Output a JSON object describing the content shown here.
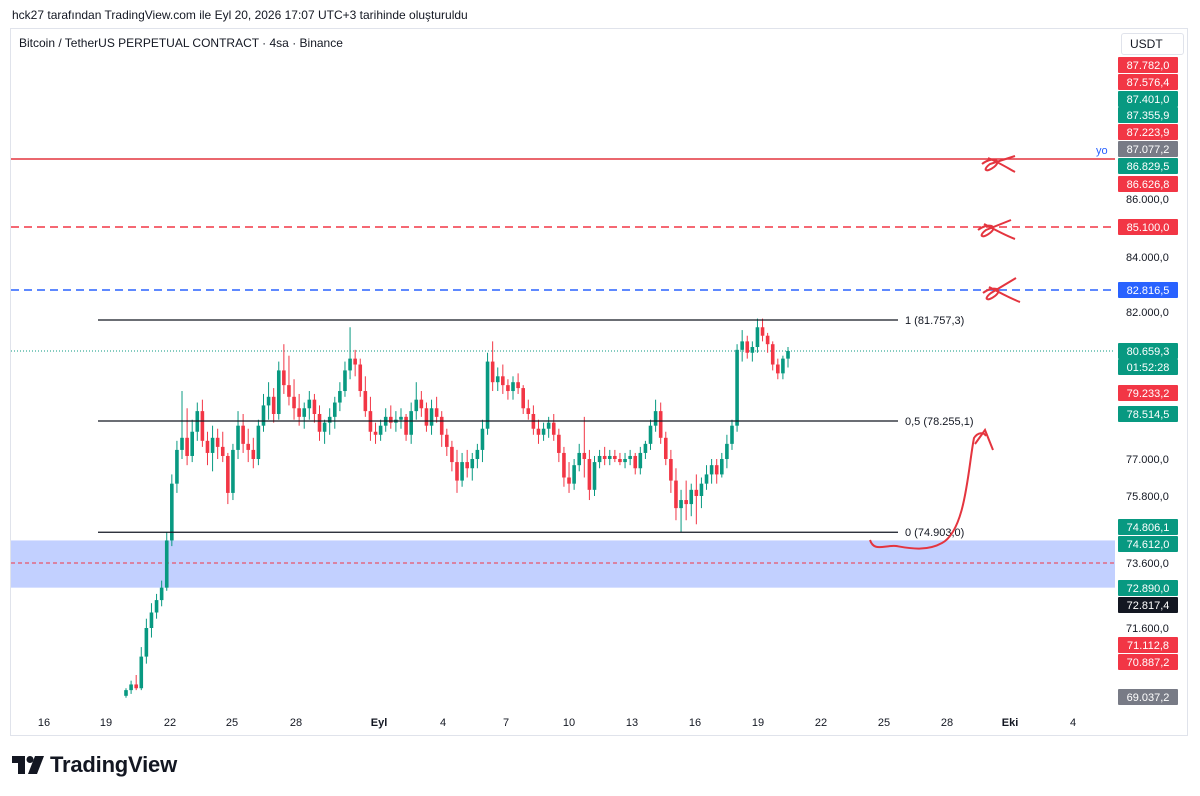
{
  "header": {
    "caption": "hck27 tarafından TradingView.com ile Eyl 20, 2026 17:07 UTC+3 tarihinde oluşturuldu"
  },
  "symbol": {
    "title": "Bitcoin / TetherUS PERPETUAL CONTRACT · 4sa · Binance"
  },
  "currency": "USDT",
  "footer": {
    "brand": "TradingView"
  },
  "colors": {
    "up": "#089981",
    "down": "#f23645",
    "black": "#131722",
    "gray": "#787b86",
    "blue": "#2962ff",
    "red_line": "#e4353f",
    "zone": "#bbcbff"
  },
  "chart_data": {
    "type": "candlestick",
    "y_axis": {
      "tick_labels": [
        "86.000,0",
        "84.000,0",
        "82.000,0",
        "77.000,0",
        "75.800,0",
        "73.600,0",
        "71.600,0"
      ]
    },
    "x_axis": {
      "tick_labels": [
        "16",
        "19",
        "22",
        "25",
        "28",
        "Eyl",
        "4",
        "7",
        "10",
        "13",
        "16",
        "19",
        "22",
        "25",
        "28",
        "Eki",
        "4"
      ]
    },
    "price_labels": [
      {
        "text": "87.782,0",
        "color": "#f23645"
      },
      {
        "text": "87.576,4",
        "color": "#f23645"
      },
      {
        "text": "87.401,0",
        "color": "#089981"
      },
      {
        "text": "87.355,9",
        "color": "#089981"
      },
      {
        "text": "87.223,9",
        "color": "#f23645"
      },
      {
        "text": "87.077,2",
        "color": "#787b86"
      },
      {
        "text": "86.829,5",
        "color": "#089981"
      },
      {
        "text": "86.626,8",
        "color": "#f23645"
      },
      {
        "text": "85.100,0",
        "color": "#f23645"
      },
      {
        "text": "82.816,5",
        "color": "#2962ff"
      },
      {
        "text": "80.659,3",
        "color": "#089981"
      },
      {
        "text": "01:52:28",
        "color": "#089981"
      },
      {
        "text": "79.233,2",
        "color": "#f23645"
      },
      {
        "text": "78.514,5",
        "color": "#089981"
      },
      {
        "text": "74.806,1",
        "color": "#089981"
      },
      {
        "text": "74.612,0",
        "color": "#089981"
      },
      {
        "text": "72.890,0",
        "color": "#089981"
      },
      {
        "text": "72.817,4",
        "color": "#131722"
      },
      {
        "text": "71.112,8",
        "color": "#f23645"
      },
      {
        "text": "70.887,2",
        "color": "#f23645"
      },
      {
        "text": "69.037,2",
        "color": "#787b86"
      }
    ],
    "fib_levels": [
      {
        "ratio": 1,
        "price": 81757.3,
        "label": "1 (81.757,3)"
      },
      {
        "ratio": 0.5,
        "price": 78255.1,
        "label": "0,5 (78.255,1)"
      },
      {
        "ratio": 0,
        "price": 74903.0,
        "label": "0 (74.903,0)"
      }
    ],
    "horizontal_lines": [
      {
        "price": 86800,
        "style": "solid",
        "color": "#e4353f",
        "label": "yo"
      },
      {
        "price": 85100,
        "style": "dashed",
        "color": "#f23645"
      },
      {
        "price": 82816.5,
        "style": "dashed",
        "color": "#2962ff"
      }
    ],
    "current_price": 80659.3,
    "demand_zone": {
      "from": 72900,
      "to": 74700,
      "midline": 73600
    },
    "candles": [
      {
        "o": 69100,
        "h": 69500,
        "l": 69000,
        "c": 69400
      },
      {
        "o": 69400,
        "h": 69900,
        "l": 69200,
        "c": 69700
      },
      {
        "o": 69700,
        "h": 70200,
        "l": 69400,
        "c": 69500
      },
      {
        "o": 69500,
        "h": 71200,
        "l": 69400,
        "c": 71000
      },
      {
        "o": 71000,
        "h": 71900,
        "l": 70800,
        "c": 71600
      },
      {
        "o": 71600,
        "h": 72400,
        "l": 71400,
        "c": 72100
      },
      {
        "o": 72100,
        "h": 72700,
        "l": 71900,
        "c": 72500
      },
      {
        "o": 72500,
        "h": 73100,
        "l": 72300,
        "c": 72900
      },
      {
        "o": 72900,
        "h": 74900,
        "l": 72800,
        "c": 74700
      },
      {
        "o": 74700,
        "h": 76500,
        "l": 74500,
        "c": 76200
      },
      {
        "o": 76200,
        "h": 77600,
        "l": 75900,
        "c": 77300
      },
      {
        "o": 77300,
        "h": 79300,
        "l": 77000,
        "c": 77700
      },
      {
        "o": 77700,
        "h": 78700,
        "l": 76800,
        "c": 77100
      },
      {
        "o": 77100,
        "h": 78300,
        "l": 76900,
        "c": 77900
      },
      {
        "o": 77900,
        "h": 78900,
        "l": 77600,
        "c": 78600
      },
      {
        "o": 78600,
        "h": 79000,
        "l": 77400,
        "c": 77600
      },
      {
        "o": 77600,
        "h": 77900,
        "l": 76800,
        "c": 77200
      },
      {
        "o": 77200,
        "h": 78100,
        "l": 76600,
        "c": 77700
      },
      {
        "o": 77700,
        "h": 78000,
        "l": 77000,
        "c": 77400
      },
      {
        "o": 77400,
        "h": 77900,
        "l": 76900,
        "c": 77100
      },
      {
        "o": 77100,
        "h": 77200,
        "l": 75600,
        "c": 75900
      },
      {
        "o": 75900,
        "h": 77500,
        "l": 75700,
        "c": 77300
      },
      {
        "o": 77300,
        "h": 78600,
        "l": 77000,
        "c": 78100
      },
      {
        "o": 78100,
        "h": 78500,
        "l": 77200,
        "c": 77500
      },
      {
        "o": 77500,
        "h": 78000,
        "l": 76900,
        "c": 77300
      },
      {
        "o": 77300,
        "h": 77700,
        "l": 76700,
        "c": 77000
      },
      {
        "o": 77000,
        "h": 78300,
        "l": 76800,
        "c": 78100
      },
      {
        "o": 78100,
        "h": 79200,
        "l": 77900,
        "c": 78800
      },
      {
        "o": 78800,
        "h": 79600,
        "l": 78300,
        "c": 79100
      },
      {
        "o": 79100,
        "h": 79400,
        "l": 78200,
        "c": 78500
      },
      {
        "o": 78500,
        "h": 80300,
        "l": 78300,
        "c": 80000
      },
      {
        "o": 80000,
        "h": 80900,
        "l": 79200,
        "c": 79500
      },
      {
        "o": 79500,
        "h": 80500,
        "l": 78800,
        "c": 79100
      },
      {
        "o": 79100,
        "h": 79700,
        "l": 78300,
        "c": 78700
      },
      {
        "o": 78700,
        "h": 79200,
        "l": 78100,
        "c": 78400
      },
      {
        "o": 78400,
        "h": 78900,
        "l": 78000,
        "c": 78700
      },
      {
        "o": 78700,
        "h": 79300,
        "l": 78300,
        "c": 79000
      },
      {
        "o": 79000,
        "h": 79200,
        "l": 78200,
        "c": 78500
      },
      {
        "o": 78500,
        "h": 78800,
        "l": 77600,
        "c": 77900
      },
      {
        "o": 77900,
        "h": 78300,
        "l": 77500,
        "c": 78200
      },
      {
        "o": 78200,
        "h": 78700,
        "l": 77800,
        "c": 78400
      },
      {
        "o": 78400,
        "h": 79100,
        "l": 78000,
        "c": 78900
      },
      {
        "o": 78900,
        "h": 79600,
        "l": 78600,
        "c": 79300
      },
      {
        "o": 79300,
        "h": 80300,
        "l": 79100,
        "c": 80000
      },
      {
        "o": 80000,
        "h": 81500,
        "l": 79700,
        "c": 80400
      },
      {
        "o": 80400,
        "h": 80700,
        "l": 79800,
        "c": 80200
      },
      {
        "o": 80200,
        "h": 80400,
        "l": 79100,
        "c": 79300
      },
      {
        "o": 79300,
        "h": 79800,
        "l": 78400,
        "c": 78600
      },
      {
        "o": 78600,
        "h": 79100,
        "l": 77600,
        "c": 77900
      },
      {
        "o": 77900,
        "h": 78200,
        "l": 77500,
        "c": 77800
      },
      {
        "o": 77800,
        "h": 78300,
        "l": 77600,
        "c": 78100
      },
      {
        "o": 78100,
        "h": 78700,
        "l": 77900,
        "c": 78400
      },
      {
        "o": 78400,
        "h": 78800,
        "l": 78000,
        "c": 78200
      },
      {
        "o": 78200,
        "h": 78600,
        "l": 77900,
        "c": 78300
      },
      {
        "o": 78300,
        "h": 78700,
        "l": 78000,
        "c": 78400
      },
      {
        "o": 78400,
        "h": 78500,
        "l": 77600,
        "c": 77800
      },
      {
        "o": 77800,
        "h": 78900,
        "l": 77500,
        "c": 78600
      },
      {
        "o": 78600,
        "h": 79600,
        "l": 78300,
        "c": 79000
      },
      {
        "o": 79000,
        "h": 79300,
        "l": 78400,
        "c": 78700
      },
      {
        "o": 78700,
        "h": 78900,
        "l": 77900,
        "c": 78100
      },
      {
        "o": 78100,
        "h": 79000,
        "l": 77800,
        "c": 78700
      },
      {
        "o": 78700,
        "h": 79100,
        "l": 78200,
        "c": 78400
      },
      {
        "o": 78400,
        "h": 78600,
        "l": 77400,
        "c": 77800
      },
      {
        "o": 77800,
        "h": 78000,
        "l": 77100,
        "c": 77400
      },
      {
        "o": 77400,
        "h": 77600,
        "l": 76600,
        "c": 76900
      },
      {
        "o": 76900,
        "h": 77300,
        "l": 75900,
        "c": 76300
      },
      {
        "o": 76300,
        "h": 77200,
        "l": 76100,
        "c": 76900
      },
      {
        "o": 76900,
        "h": 77300,
        "l": 76400,
        "c": 76700
      },
      {
        "o": 76700,
        "h": 77200,
        "l": 76300,
        "c": 77000
      },
      {
        "o": 77000,
        "h": 77500,
        "l": 76700,
        "c": 77300
      },
      {
        "o": 77300,
        "h": 78300,
        "l": 76900,
        "c": 78000
      },
      {
        "o": 78000,
        "h": 80600,
        "l": 77800,
        "c": 80300
      },
      {
        "o": 80300,
        "h": 81000,
        "l": 79300,
        "c": 79600
      },
      {
        "o": 79600,
        "h": 80100,
        "l": 79300,
        "c": 79800
      },
      {
        "o": 79800,
        "h": 80200,
        "l": 79200,
        "c": 79500
      },
      {
        "o": 79500,
        "h": 79700,
        "l": 79000,
        "c": 79300
      },
      {
        "o": 79300,
        "h": 79800,
        "l": 79000,
        "c": 79600
      },
      {
        "o": 79600,
        "h": 79900,
        "l": 79200,
        "c": 79400
      },
      {
        "o": 79400,
        "h": 79500,
        "l": 78500,
        "c": 78700
      },
      {
        "o": 78700,
        "h": 79000,
        "l": 78300,
        "c": 78500
      },
      {
        "o": 78500,
        "h": 78800,
        "l": 77800,
        "c": 78000
      },
      {
        "o": 78000,
        "h": 78300,
        "l": 77500,
        "c": 77800
      },
      {
        "o": 77800,
        "h": 78200,
        "l": 77600,
        "c": 78000
      },
      {
        "o": 78000,
        "h": 78400,
        "l": 77700,
        "c": 78200
      },
      {
        "o": 78200,
        "h": 78500,
        "l": 77600,
        "c": 77800
      },
      {
        "o": 77800,
        "h": 78000,
        "l": 76900,
        "c": 77200
      },
      {
        "o": 77200,
        "h": 77400,
        "l": 76100,
        "c": 76400
      },
      {
        "o": 76400,
        "h": 76900,
        "l": 75900,
        "c": 76200
      },
      {
        "o": 76200,
        "h": 77000,
        "l": 76000,
        "c": 76800
      },
      {
        "o": 76800,
        "h": 77500,
        "l": 76600,
        "c": 77200
      },
      {
        "o": 77200,
        "h": 78400,
        "l": 76400,
        "c": 77000
      },
      {
        "o": 77000,
        "h": 77300,
        "l": 75700,
        "c": 76000
      },
      {
        "o": 76000,
        "h": 77100,
        "l": 75800,
        "c": 76900
      },
      {
        "o": 76900,
        "h": 77300,
        "l": 76700,
        "c": 77100
      },
      {
        "o": 77100,
        "h": 77400,
        "l": 76800,
        "c": 77000
      },
      {
        "o": 77000,
        "h": 77300,
        "l": 76800,
        "c": 77100
      },
      {
        "o": 77100,
        "h": 77300,
        "l": 76900,
        "c": 77000
      },
      {
        "o": 77000,
        "h": 77200,
        "l": 76800,
        "c": 76900
      },
      {
        "o": 76900,
        "h": 77200,
        "l": 76700,
        "c": 77000
      },
      {
        "o": 77000,
        "h": 77300,
        "l": 76800,
        "c": 77100
      },
      {
        "o": 77100,
        "h": 77200,
        "l": 76500,
        "c": 76700
      },
      {
        "o": 76700,
        "h": 77400,
        "l": 76500,
        "c": 77200
      },
      {
        "o": 77200,
        "h": 77600,
        "l": 77000,
        "c": 77500
      },
      {
        "o": 77500,
        "h": 78300,
        "l": 77300,
        "c": 78100
      },
      {
        "o": 78100,
        "h": 79000,
        "l": 77900,
        "c": 78600
      },
      {
        "o": 78600,
        "h": 78900,
        "l": 77500,
        "c": 77700
      },
      {
        "o": 77700,
        "h": 77900,
        "l": 76800,
        "c": 77000
      },
      {
        "o": 77000,
        "h": 77300,
        "l": 75900,
        "c": 76300
      },
      {
        "o": 76300,
        "h": 76700,
        "l": 75200,
        "c": 75500
      },
      {
        "o": 75500,
        "h": 76000,
        "l": 74900,
        "c": 75700
      },
      {
        "o": 75700,
        "h": 76300,
        "l": 75200,
        "c": 75600
      },
      {
        "o": 75600,
        "h": 76200,
        "l": 75300,
        "c": 76000
      },
      {
        "o": 76000,
        "h": 76500,
        "l": 75100,
        "c": 75800
      },
      {
        "o": 75800,
        "h": 76400,
        "l": 75500,
        "c": 76200
      },
      {
        "o": 76200,
        "h": 76800,
        "l": 76000,
        "c": 76500
      },
      {
        "o": 76500,
        "h": 77000,
        "l": 76200,
        "c": 76800
      },
      {
        "o": 76800,
        "h": 77000,
        "l": 76200,
        "c": 76500
      },
      {
        "o": 76500,
        "h": 77200,
        "l": 76400,
        "c": 77000
      },
      {
        "o": 77000,
        "h": 77800,
        "l": 76700,
        "c": 77500
      },
      {
        "o": 77500,
        "h": 78300,
        "l": 77300,
        "c": 78100
      },
      {
        "o": 78100,
        "h": 80900,
        "l": 77900,
        "c": 80700
      },
      {
        "o": 80700,
        "h": 81400,
        "l": 80300,
        "c": 81000
      },
      {
        "o": 81000,
        "h": 81200,
        "l": 80400,
        "c": 80600
      },
      {
        "o": 80600,
        "h": 81000,
        "l": 80300,
        "c": 80800
      },
      {
        "o": 80800,
        "h": 81800,
        "l": 80600,
        "c": 81500
      },
      {
        "o": 81500,
        "h": 81800,
        "l": 81000,
        "c": 81200
      },
      {
        "o": 81200,
        "h": 81300,
        "l": 80600,
        "c": 80900
      },
      {
        "o": 80900,
        "h": 81000,
        "l": 80000,
        "c": 80200
      },
      {
        "o": 80200,
        "h": 80400,
        "l": 79700,
        "c": 79900
      },
      {
        "o": 79900,
        "h": 80500,
        "l": 79700,
        "c": 80400
      },
      {
        "o": 80400,
        "h": 80800,
        "l": 80100,
        "c": 80659
      }
    ]
  }
}
